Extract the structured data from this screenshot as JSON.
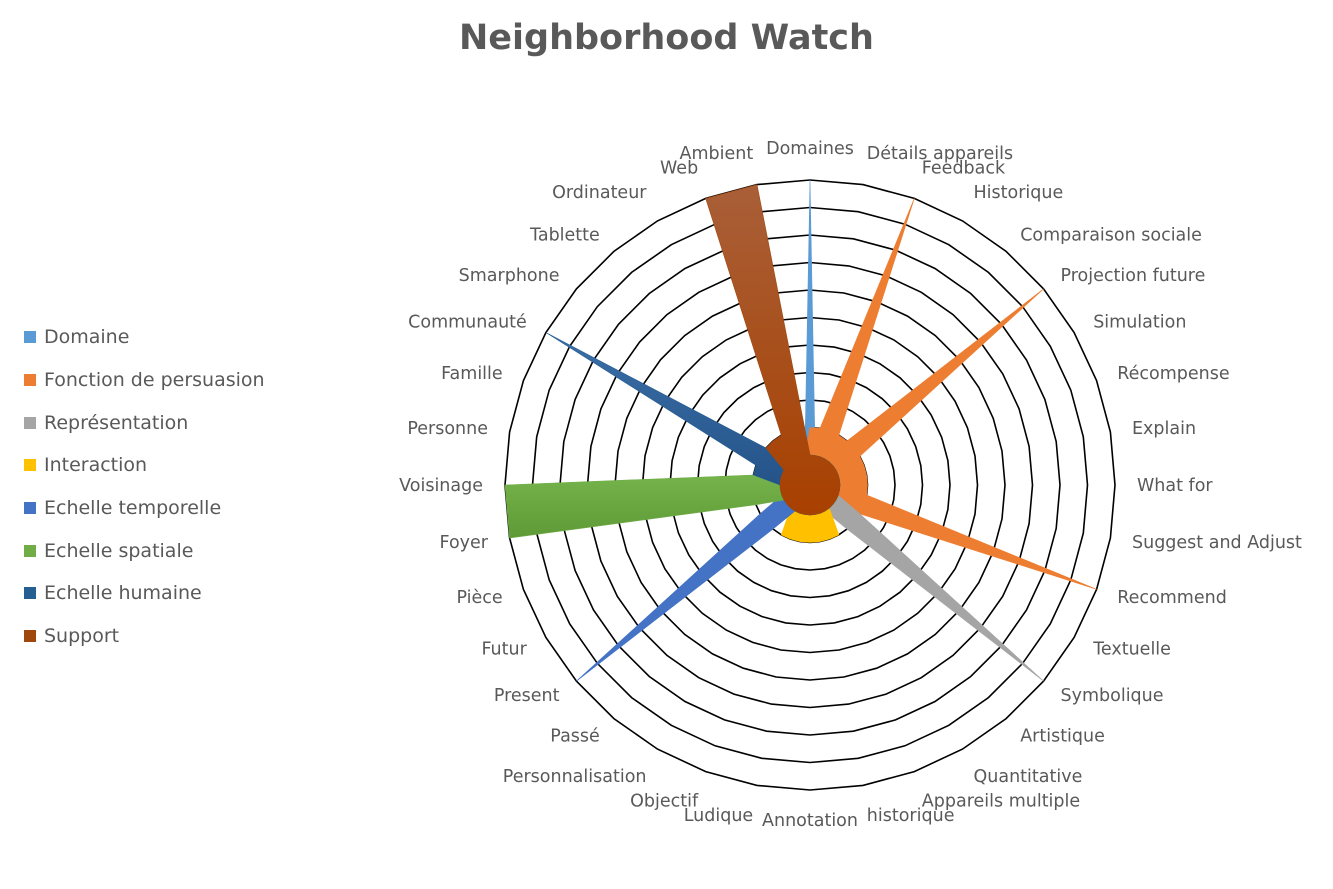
{
  "chart_data": {
    "type": "radar-area",
    "title": "Neighborhood Watch",
    "categories": [
      "Domaines",
      "Détails appareils",
      "Feedback",
      "Historique",
      "Comparaison sociale",
      "Projection future",
      "Simulation",
      "Récompense",
      "Explain",
      "What for",
      "Suggest and Adjust",
      "Recommend",
      "Textuelle",
      "Symbolique",
      "Artistique",
      "Quantitative",
      "Appareils multiple",
      "historique",
      "Annotation",
      "Ludique",
      "Objectif",
      "Personnalisation",
      "Passé",
      "Present",
      "Futur",
      "Pièce",
      "Foyer",
      "Voisinage",
      "Personne",
      "Famille",
      "Communauté",
      "Smarphone",
      "Tablette",
      "Ordinateur",
      "Web",
      "Ambient"
    ],
    "rmax": 10,
    "grid_steps": 10,
    "legend_position": "left",
    "series": [
      {
        "name": "Domaine",
        "color": "#5B9BD5",
        "values": [
          10,
          0,
          0,
          0,
          0,
          0,
          0,
          0,
          0,
          0,
          0,
          0,
          0,
          0,
          0,
          0,
          0,
          0,
          0,
          0,
          0,
          0,
          0,
          0,
          0,
          0,
          0,
          0,
          0,
          0,
          0,
          0,
          0,
          0,
          0,
          0
        ]
      },
      {
        "name": "Fonction de persuasion",
        "color": "#ED7D31",
        "values": [
          1,
          1,
          10,
          1,
          1,
          10,
          1,
          1,
          1,
          1,
          1,
          10,
          1,
          0,
          0,
          0,
          0,
          0,
          0,
          0,
          0,
          0,
          0,
          0,
          0,
          0,
          0,
          0,
          0,
          0,
          0,
          0,
          0,
          0,
          0,
          0
        ]
      },
      {
        "name": "Représentation",
        "color": "#A5A5A5",
        "values": [
          0,
          0,
          0,
          0,
          0,
          0,
          0,
          0,
          0,
          0,
          0,
          0,
          1,
          10,
          1,
          0,
          0,
          0,
          0,
          0,
          0,
          0,
          0,
          0,
          0,
          0,
          0,
          0,
          0,
          0,
          0,
          0,
          0,
          0,
          0,
          0
        ]
      },
      {
        "name": "Interaction",
        "color": "#FFC000",
        "values": [
          0,
          0,
          0,
          0,
          0,
          0,
          0,
          0,
          0,
          0,
          0,
          0,
          0,
          0,
          0,
          1,
          1,
          1,
          1,
          1,
          1,
          1,
          0,
          0,
          0,
          0,
          0,
          0,
          0,
          0,
          0,
          0,
          0,
          0,
          0,
          0
        ]
      },
      {
        "name": "Echelle temporelle",
        "color": "#4472C4",
        "values": [
          0,
          0,
          0,
          0,
          0,
          0,
          0,
          0,
          0,
          0,
          0,
          0,
          0,
          0,
          0,
          0,
          0,
          0,
          0,
          0,
          0,
          0,
          1,
          10,
          1,
          0,
          0,
          0,
          0,
          0,
          0,
          0,
          0,
          0,
          0,
          0
        ]
      },
      {
        "name": "Echelle spatiale",
        "color": "#70AD47",
        "values": [
          0,
          0,
          0,
          0,
          0,
          0,
          0,
          0,
          0,
          0,
          0,
          0,
          0,
          0,
          0,
          0,
          0,
          0,
          0,
          0,
          0,
          0,
          0,
          0,
          0,
          1,
          10,
          10,
          1,
          0,
          0,
          0,
          0,
          0,
          0,
          0
        ]
      },
      {
        "name": "Echelle humaine",
        "color": "#255E91",
        "values": [
          0,
          0,
          0,
          0,
          0,
          0,
          0,
          0,
          0,
          0,
          0,
          0,
          0,
          0,
          0,
          0,
          0,
          0,
          0,
          0,
          0,
          0,
          0,
          0,
          0,
          0,
          0,
          0,
          1,
          1,
          10,
          1,
          0,
          0,
          0,
          0
        ]
      },
      {
        "name": "Support",
        "color": "#9E480E",
        "values": [
          0,
          0,
          0,
          0,
          0,
          0,
          0,
          0,
          0,
          0,
          0,
          0,
          0,
          0,
          0,
          0,
          0,
          0,
          0,
          0,
          0,
          0,
          0,
          0,
          0,
          0,
          0,
          0,
          0,
          0,
          0,
          1,
          1,
          1,
          10,
          10
        ]
      }
    ]
  }
}
